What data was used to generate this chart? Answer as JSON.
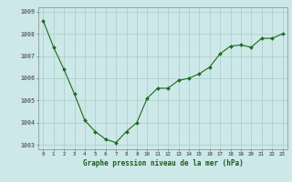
{
  "x": [
    0,
    1,
    2,
    3,
    4,
    5,
    6,
    7,
    8,
    9,
    10,
    11,
    12,
    13,
    14,
    15,
    16,
    17,
    18,
    19,
    20,
    21,
    22,
    23
  ],
  "y": [
    1008.6,
    1007.4,
    1006.4,
    1005.3,
    1004.1,
    1003.6,
    1003.25,
    1003.1,
    1003.6,
    1004.0,
    1005.1,
    1005.55,
    1005.55,
    1005.9,
    1006.0,
    1006.2,
    1006.5,
    1007.1,
    1007.45,
    1007.5,
    1007.4,
    1007.8,
    1007.8,
    1008.0
  ],
  "line_color": "#1a6b1a",
  "marker_color": "#1a6b1a",
  "bg_color": "#cce8e8",
  "grid_color": "#aacccc",
  "tick_label_color": "#1a5c1a",
  "xlabel": "Graphe pression niveau de la mer (hPa)",
  "ylim": [
    1002.8,
    1009.2
  ],
  "yticks": [
    1003,
    1004,
    1005,
    1006,
    1007,
    1008,
    1009
  ],
  "xticks": [
    0,
    1,
    2,
    3,
    4,
    5,
    6,
    7,
    8,
    9,
    10,
    11,
    12,
    13,
    14,
    15,
    16,
    17,
    18,
    19,
    20,
    21,
    22,
    23
  ],
  "xtick_labels": [
    "0",
    "1",
    "2",
    "3",
    "4",
    "5",
    "6",
    "7",
    "8",
    "9",
    "10",
    "11",
    "12",
    "13",
    "14",
    "15",
    "16",
    "17",
    "18",
    "19",
    "20",
    "21",
    "22",
    "23"
  ]
}
